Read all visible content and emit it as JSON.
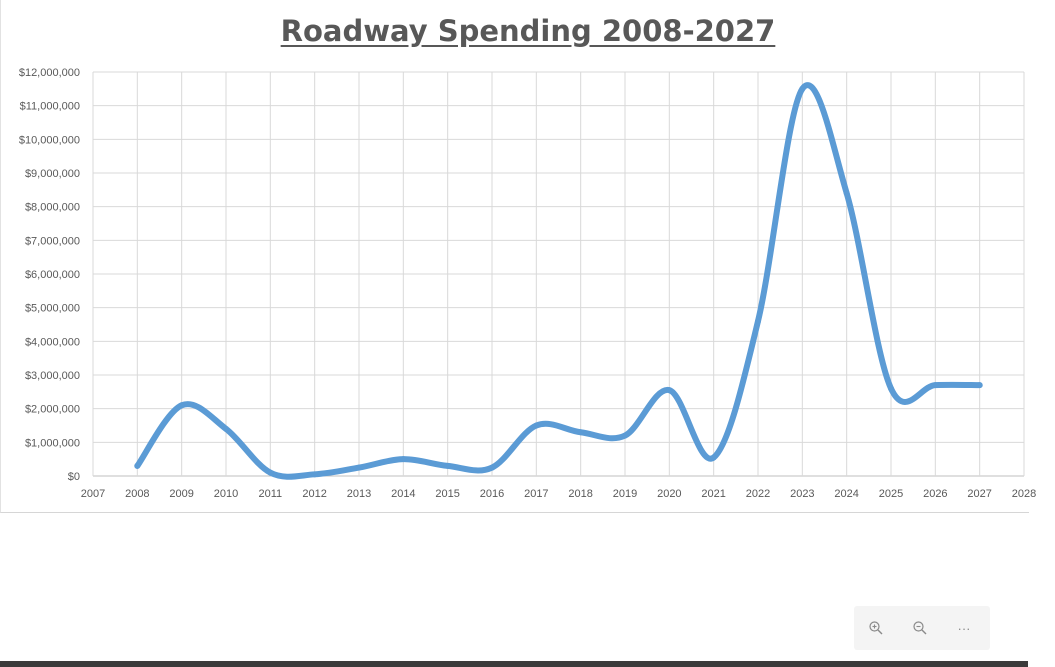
{
  "chart_data": {
    "type": "line",
    "title": "Roadway Spending 2008-2027",
    "xlabel": "",
    "ylabel": "",
    "x": [
      2008,
      2009,
      2010,
      2011,
      2012,
      2013,
      2014,
      2015,
      2016,
      2017,
      2018,
      2019,
      2020,
      2021,
      2022,
      2023,
      2024,
      2025,
      2026,
      2027
    ],
    "series": [
      {
        "name": "",
        "values": [
          300000,
          2100000,
          1400000,
          100000,
          50000,
          250000,
          500000,
          300000,
          250000,
          1500000,
          1300000,
          1200000,
          2550000,
          550000,
          4600000,
          11500000,
          8400000,
          2600000,
          2700000,
          2700000
        ]
      }
    ],
    "xlim": [
      2007,
      2028
    ],
    "ylim": [
      0,
      12000000
    ],
    "x_ticks": [
      "2007",
      "2008",
      "2009",
      "2010",
      "2011",
      "2012",
      "2013",
      "2014",
      "2015",
      "2016",
      "2017",
      "2018",
      "2019",
      "2020",
      "2021",
      "2022",
      "2023",
      "2024",
      "2025",
      "2026",
      "2027",
      "2028"
    ],
    "y_ticks": [
      "$0",
      "$1,000,000",
      "$2,000,000",
      "$3,000,000",
      "$4,000,000",
      "$5,000,000",
      "$6,000,000",
      "$7,000,000",
      "$8,000,000",
      "$9,000,000",
      "$10,000,000",
      "$11,000,000",
      "$12,000,000"
    ],
    "grid": true,
    "legend": "none",
    "line_color": "#5b9bd5"
  },
  "toolbar": {
    "zoom_in_icon": "zoom-in-icon",
    "zoom_out_icon": "zoom-out-icon",
    "more_label": "···"
  }
}
